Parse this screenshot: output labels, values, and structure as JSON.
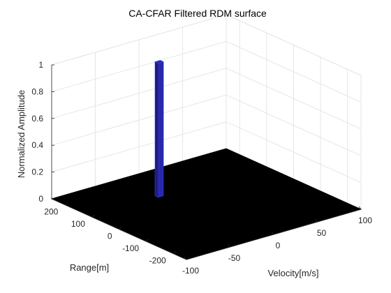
{
  "chart_data": {
    "type": "surface",
    "title": "CA-CFAR Filtered RDM surface",
    "xlabel": "Velocity[m/s]",
    "ylabel": "Range[m]",
    "zlabel": "Normalized Amplitude",
    "xlim": [
      -100,
      100
    ],
    "ylim": [
      -250,
      250
    ],
    "zlim": [
      0,
      1
    ],
    "x_ticks": [
      "-100",
      "-50",
      "0",
      "50",
      "100"
    ],
    "y_ticks": [
      "-200",
      "-100",
      "0",
      "100",
      "200"
    ],
    "z_ticks": [
      "0",
      "0.2",
      "0.4",
      "0.6",
      "0.8",
      "1"
    ],
    "grid": true,
    "background_value": 0,
    "peaks": [
      {
        "velocity": -20,
        "range": 110,
        "amplitude": 1
      }
    ],
    "colors": {
      "surface": "#000000",
      "peak_face": "#1c1c7a",
      "peak_edge": "#3a3aff",
      "grid": "#e6e6e6",
      "axis": "#262626"
    }
  }
}
